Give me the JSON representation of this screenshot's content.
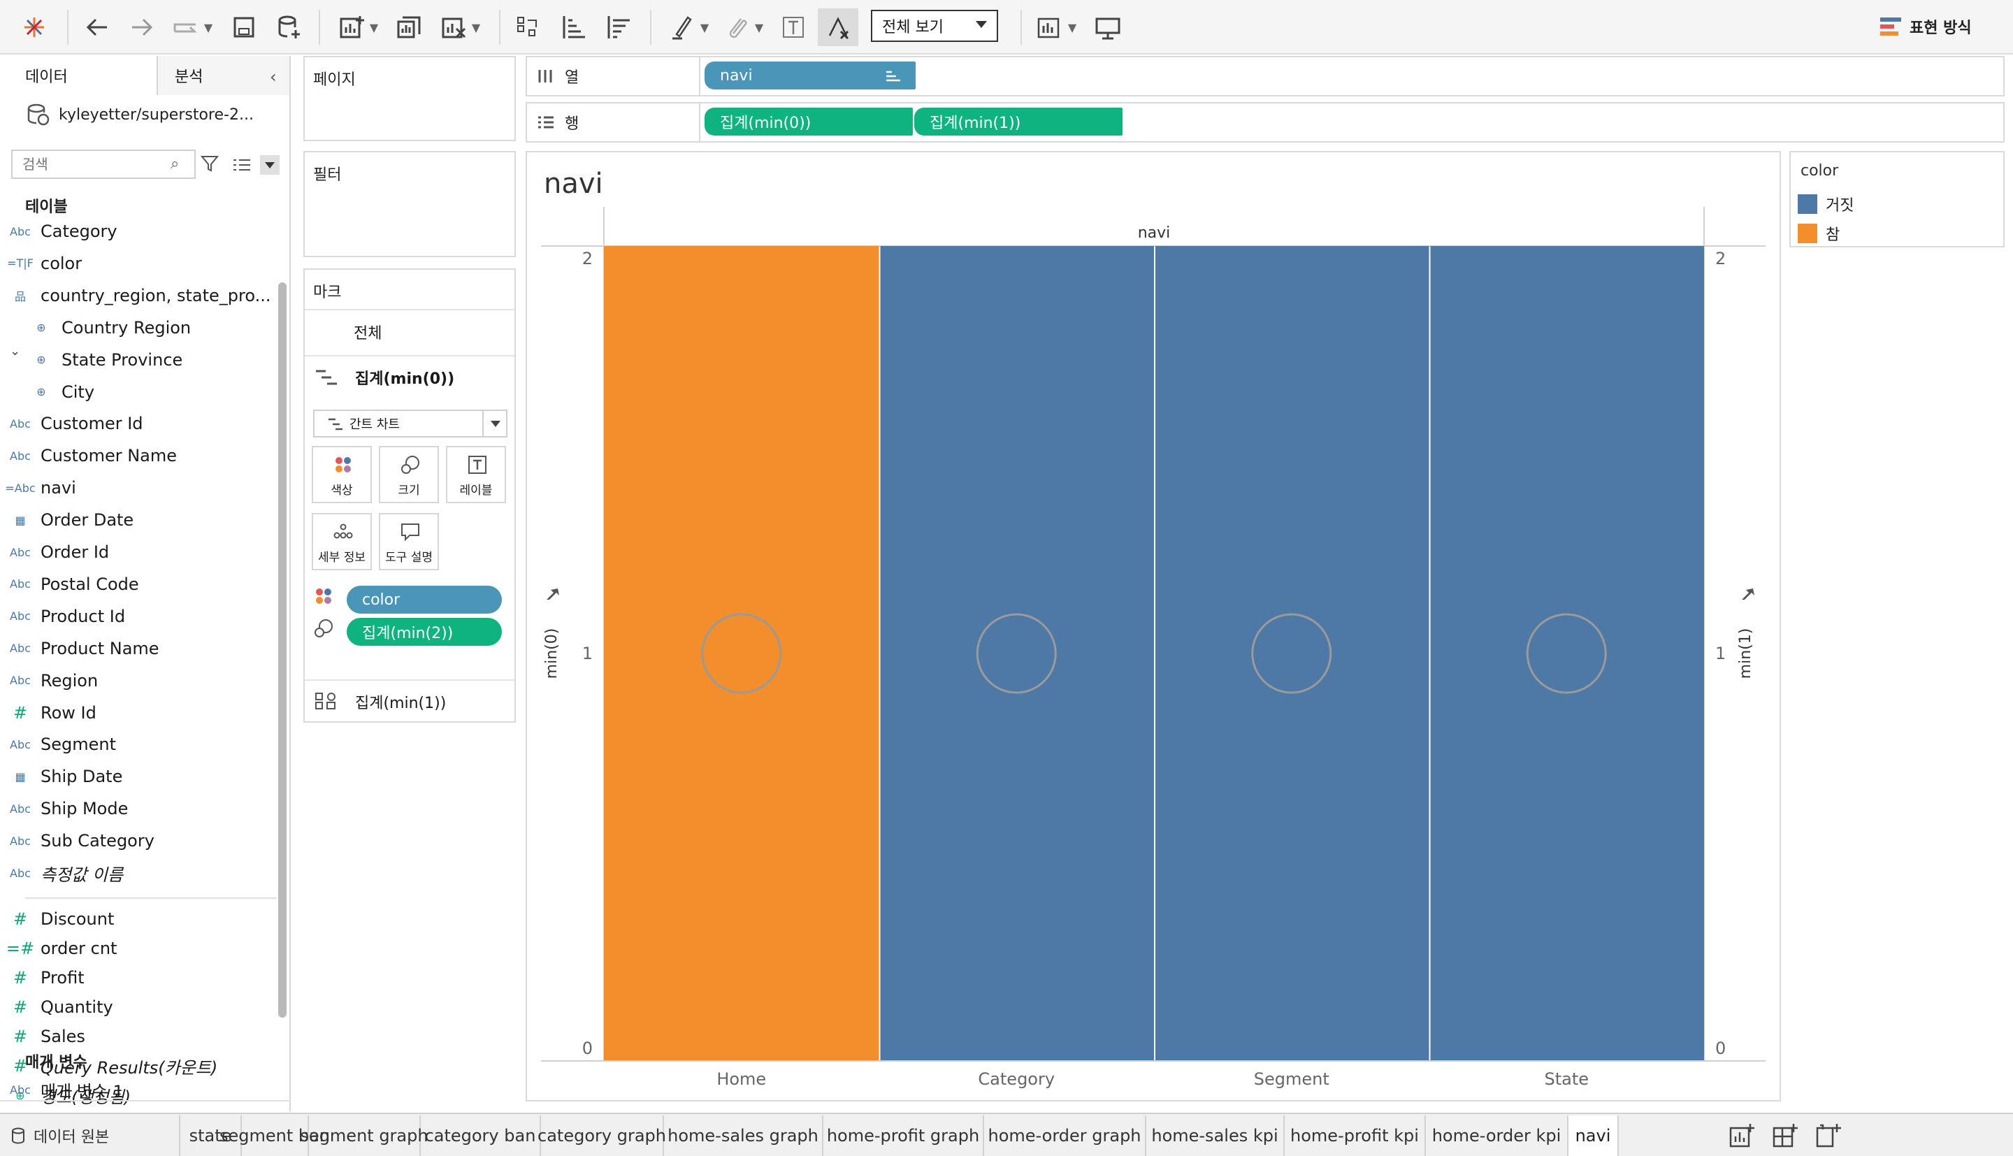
{
  "toolbar": {
    "view_select": "전체 보기",
    "show_me": "표현 방식"
  },
  "panel": {
    "tab_data": "데이터",
    "tab_analysis": "분석",
    "datasource": "kyleyetter/superstore-2...",
    "search_placeholder": "검색",
    "tables_title": "테이블",
    "params_title": "매개 변수"
  },
  "fields": [
    {
      "type": "Abc",
      "name": "Category"
    },
    {
      "type": "=T|F",
      "name": "color"
    },
    {
      "type": "hier",
      "name": "country_region, state_pro..."
    },
    {
      "type": "geo",
      "name": "Country Region",
      "child": true
    },
    {
      "type": "geo",
      "name": "State Province",
      "child": true
    },
    {
      "type": "geo",
      "name": "City",
      "child": true
    },
    {
      "type": "Abc",
      "name": "Customer Id"
    },
    {
      "type": "Abc",
      "name": "Customer Name"
    },
    {
      "type": "=Abc",
      "name": "navi"
    },
    {
      "type": "date",
      "name": "Order Date"
    },
    {
      "type": "Abc",
      "name": "Order Id"
    },
    {
      "type": "Abc",
      "name": "Postal Code"
    },
    {
      "type": "Abc",
      "name": "Product Id"
    },
    {
      "type": "Abc",
      "name": "Product Name"
    },
    {
      "type": "Abc",
      "name": "Region"
    },
    {
      "type": "#",
      "name": "Row Id"
    },
    {
      "type": "Abc",
      "name": "Segment"
    },
    {
      "type": "date",
      "name": "Ship Date"
    },
    {
      "type": "Abc",
      "name": "Ship Mode"
    },
    {
      "type": "Abc",
      "name": "Sub Category"
    },
    {
      "type": "Abc",
      "name": "측정값 이름",
      "italic": true
    }
  ],
  "measures": [
    {
      "type": "#",
      "name": "Discount"
    },
    {
      "type": "=#",
      "name": "order cnt"
    },
    {
      "type": "#",
      "name": "Profit"
    },
    {
      "type": "#",
      "name": "Quantity"
    },
    {
      "type": "#",
      "name": "Sales"
    },
    {
      "type": "#",
      "name": "Query Results(카운트)",
      "italic": true
    },
    {
      "type": "geo",
      "name": "경도(생성됨)",
      "italic": true
    }
  ],
  "params": [
    {
      "type": "Abc",
      "name": "매개 변수 1"
    }
  ],
  "cards": {
    "pages": "페이지",
    "filters": "필터",
    "marks": "마크",
    "marks_all": "전체",
    "marks_sel": "집계(min(0))",
    "mark_type": "간트 차트",
    "btn_color": "색상",
    "btn_size": "크기",
    "btn_label": "레이블",
    "btn_detail": "세부 정보",
    "btn_tooltip": "도구 설명",
    "pill_color": "color",
    "pill_size": "집계(min(2))",
    "marks_last": "집계(min(1))"
  },
  "shelves": {
    "columns_label": "열",
    "rows_label": "행",
    "col_pill": "navi",
    "row_pill_1": "집계(min(0))",
    "row_pill_2": "집계(min(1))"
  },
  "sheet": {
    "title": "navi"
  },
  "legend": {
    "title": "color",
    "items": [
      {
        "label": "거짓",
        "color": "#4e79a7"
      },
      {
        "label": "참",
        "color": "#f28e2b"
      }
    ]
  },
  "chart_data": {
    "type": "bar",
    "title": "navi",
    "column_header": "navi",
    "categories": [
      "Home",
      "Category",
      "Segment",
      "State"
    ],
    "series": [
      {
        "name": "참",
        "values": [
          2,
          0,
          0,
          0
        ],
        "color": "#f28e2b"
      },
      {
        "name": "거짓",
        "values": [
          0,
          2,
          2,
          2
        ],
        "color": "#4e79a7"
      }
    ],
    "circles": [
      1,
      1,
      1,
      1
    ],
    "ylabel_left": "min(0)",
    "ylabel_right": "min(1)",
    "ylim": [
      0,
      2
    ],
    "yticks": [
      "0",
      "1",
      "2"
    ],
    "legend": "right"
  },
  "tabs": {
    "datasource": "데이터 원본",
    "sheets": [
      "state",
      "segment ban",
      "segment graph",
      "category ban",
      "category graph",
      "home-sales graph",
      "home-profit graph",
      "home-order graph",
      "home-sales kpi",
      "home-profit kpi",
      "home-order kpi",
      "navi"
    ],
    "active": "navi"
  }
}
